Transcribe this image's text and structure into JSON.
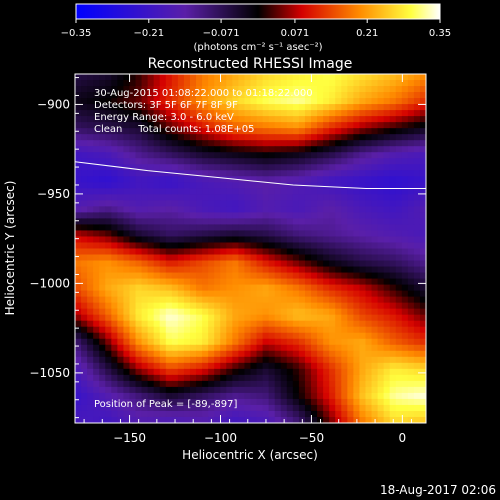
{
  "chart_data": {
    "type": "heatmap",
    "title": "Reconstructed RHESSI Image",
    "xlabel": "Heliocentric X (arcsec)",
    "ylabel": "Heliocentric Y (arcsec)",
    "xlim": [
      -180,
      13
    ],
    "ylim": [
      -1078,
      -883
    ],
    "x_ticks": [
      -150,
      -100,
      -50,
      0
    ],
    "x_tick_labels": [
      "−150",
      "−100",
      "−50",
      "0"
    ],
    "y_ticks": [
      -900,
      -950,
      -1000,
      -1050
    ],
    "y_tick_labels": [
      "−900",
      "−950",
      "−1000",
      "−1050"
    ],
    "colorbar": {
      "range": [
        -0.35,
        0.35
      ],
      "ticks": [
        -0.35,
        -0.21,
        -0.071,
        0.071,
        0.21,
        0.35
      ],
      "tick_labels": [
        "−0.35",
        "−0.21",
        "−0.071",
        "0.071",
        "0.21",
        "0.35"
      ],
      "units_label": "(photons cm⁻² s⁻¹ asec⁻²)",
      "colors": [
        "#0000ff",
        "#5a1fa8",
        "#000000",
        "#d40000",
        "#ff8c00",
        "#ffff40",
        "#ffffff"
      ]
    },
    "annotations": [
      "30-Aug-2015 01:08:22.000 to 01:18:22.000",
      "Detectors: 3F 5F 6F 7F 8F 9F",
      "Energy Range: 3.0 - 6.0 keV",
      "Clean     Total counts: 1.08E+05"
    ],
    "peak_label": "Position of Peak = [-89,-897]",
    "limb_curve": [
      {
        "x": -180,
        "y": -932
      },
      {
        "x": -140,
        "y": -937
      },
      {
        "x": -100,
        "y": -941
      },
      {
        "x": -60,
        "y": -945
      },
      {
        "x": -20,
        "y": -947
      },
      {
        "x": 13,
        "y": -947
      }
    ],
    "intensity_grid_note": "values in photons cm^-2 s^-1 asec^-2, rows top (y=-883) to bottom (y=-1078), cols left (x=-180) to right (x=13)",
    "intensity_grid": [
      [
        -0.06,
        -0.04,
        0.02,
        0.1,
        0.18,
        0.22,
        0.26,
        0.28,
        0.3,
        0.27,
        0.24,
        0.2
      ],
      [
        -0.02,
        0.0,
        0.04,
        0.12,
        0.2,
        0.26,
        0.3,
        0.32,
        0.28,
        0.22,
        0.18,
        0.12
      ],
      [
        -0.08,
        -0.06,
        -0.04,
        0.04,
        0.1,
        0.16,
        0.18,
        0.2,
        0.12,
        0.06,
        0.02,
        -0.02
      ],
      [
        -0.2,
        -0.18,
        -0.12,
        -0.08,
        -0.04,
        -0.02,
        0.0,
        -0.02,
        -0.06,
        -0.12,
        -0.16,
        -0.18
      ],
      [
        -0.22,
        -0.24,
        -0.2,
        -0.22,
        -0.18,
        -0.16,
        -0.14,
        -0.16,
        -0.2,
        -0.22,
        -0.24,
        -0.22
      ],
      [
        -0.16,
        -0.12,
        -0.16,
        -0.14,
        -0.18,
        -0.2,
        -0.16,
        -0.18,
        -0.14,
        -0.18,
        -0.2,
        -0.16
      ],
      [
        0.08,
        0.04,
        -0.04,
        -0.08,
        -0.06,
        -0.04,
        -0.06,
        -0.1,
        -0.12,
        -0.14,
        -0.16,
        -0.18
      ],
      [
        0.18,
        0.2,
        0.16,
        0.1,
        0.14,
        0.18,
        0.1,
        0.04,
        -0.02,
        -0.06,
        -0.08,
        -0.12
      ],
      [
        0.14,
        0.22,
        0.26,
        0.24,
        0.18,
        0.2,
        0.22,
        0.18,
        0.12,
        0.08,
        0.02,
        -0.04
      ],
      [
        0.06,
        0.16,
        0.28,
        0.34,
        0.3,
        0.22,
        0.2,
        0.24,
        0.22,
        0.14,
        0.1,
        0.04
      ],
      [
        -0.1,
        0.04,
        0.2,
        0.3,
        0.28,
        0.18,
        0.08,
        0.12,
        0.2,
        0.22,
        0.16,
        0.12
      ],
      [
        -0.18,
        -0.06,
        0.06,
        0.14,
        0.1,
        0.02,
        -0.04,
        0.02,
        0.12,
        0.22,
        0.28,
        0.26
      ],
      [
        -0.22,
        -0.16,
        -0.1,
        -0.04,
        -0.08,
        -0.12,
        -0.1,
        0.0,
        0.1,
        0.24,
        0.32,
        0.34
      ],
      [
        -0.18,
        -0.2,
        -0.16,
        -0.18,
        -0.16,
        -0.2,
        -0.18,
        -0.1,
        0.04,
        0.18,
        0.26,
        0.24
      ]
    ]
  },
  "footer": {
    "timestamp": "18-Aug-2017 02:06"
  }
}
